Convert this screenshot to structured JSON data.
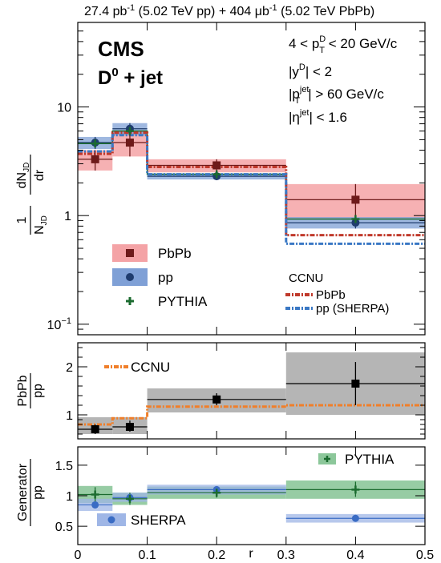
{
  "header": {
    "lumi_a": "27.4 pb",
    "lumi_a_exp": "-1",
    "lumi_a_tail": " (5.02 TeV pp) + 404 ",
    "lumi_b": "μb",
    "lumi_b_exp": "-1",
    "lumi_b_tail": " (5.02 TeV PbPb)"
  },
  "labels": {
    "cms": "CMS",
    "process_main": "D",
    "process_sup": "0",
    "process_tail": " + jet",
    "cut1": "4 < p",
    "cut1_sup": "D",
    "cut1_sub": "T",
    "cut1_tail": " < 20 GeV/c",
    "cut2_pre": "|y",
    "cut2_sup": "D",
    "cut2_tail": "| < 2",
    "cut3_pre": "|p",
    "cut3_sup": "jet",
    "cut3_sub": "T",
    "cut3_tail": "| > 60 GeV/c",
    "cut4_pre": "|η",
    "cut4_sup": "jet",
    "cut4_tail": "| < 1.6",
    "ylab_top_num": "1",
    "ylab_top_den": "N",
    "ylab_top_den_sub": "JD",
    "ylab_top_frac_num": "dN",
    "ylab_top_frac_num_sub": "JD",
    "ylab_top_frac_den": "dr",
    "ylab_mid_num": "PbPb",
    "ylab_mid_den": "pp",
    "ylab_bot_num": "Generator",
    "ylab_bot_den": "pp",
    "xlabel": "r"
  },
  "legend_top": {
    "pbpb": "PbPb",
    "pp": "pp",
    "pythia": "PYTHIA",
    "ccnu_title": "CCNU",
    "ccnu_pbpb": "PbPb",
    "ccnu_pp": "pp (SHERPA)"
  },
  "legend_mid": {
    "ccnu": "CCNU"
  },
  "legend_bot": {
    "pythia": "PYTHIA",
    "sherpa": "SHERPA"
  },
  "colors": {
    "pbpb_marker": "#6e1a1a",
    "pbpb_band": "#f4a3a6",
    "pp_marker": "#1f3c6e",
    "pp_band": "#7fa0d6",
    "pythia": "#1b6b2f",
    "pythia_band": "#8cc79a",
    "ccnu_pbpb": "#c0392b",
    "ccnu_pp": "#3a78c4",
    "ratio_band": "#b5b5b5",
    "ccnu_ratio": "#f07f2a",
    "sherpa_marker": "#3a6cc4",
    "sherpa_band": "#9fb6e6"
  },
  "chart_data": [
    {
      "type": "scatter",
      "panel": "top",
      "yscale": "log",
      "xlim": [
        0,
        0.5
      ],
      "ylim": [
        0.08,
        60
      ],
      "y_ticks": [
        "10^{-1}",
        "1",
        "10"
      ],
      "x_bins": [
        [
          0,
          0.05
        ],
        [
          0.05,
          0.1
        ],
        [
          0.1,
          0.3
        ],
        [
          0.3,
          0.5
        ]
      ],
      "x": [
        0.025,
        0.075,
        0.2,
        0.4
      ],
      "series": [
        {
          "name": "PbPb",
          "values": [
            3.3,
            4.7,
            2.9,
            1.4
          ],
          "err_low": [
            2.6,
            3.5,
            2.5,
            0.95
          ],
          "err_high": [
            4.0,
            6.0,
            3.3,
            1.95
          ]
        },
        {
          "name": "pp",
          "values": [
            4.7,
            6.3,
            2.3,
            0.86
          ],
          "err_low": [
            4.1,
            5.5,
            2.15,
            0.76
          ],
          "err_high": [
            5.3,
            7.1,
            2.45,
            0.97
          ]
        },
        {
          "name": "PYTHIA",
          "values": [
            4.6,
            6.0,
            2.4,
            0.93
          ]
        },
        {
          "name": "PbPb",
          "group": "CCNU",
          "values": [
            3.7,
            5.8,
            2.8,
            0.66
          ]
        },
        {
          "name": "pp (SHERPA)",
          "group": "CCNU",
          "values": [
            3.9,
            5.5,
            2.4,
            0.55
          ]
        }
      ]
    },
    {
      "type": "scatter",
      "panel": "ratio_pbpb_pp",
      "ylim": [
        0.5,
        2.5
      ],
      "y_ticks": [
        1,
        2
      ],
      "x": [
        0.025,
        0.075,
        0.2,
        0.4
      ],
      "series": [
        {
          "name": "PbPb/pp",
          "values": [
            0.7,
            0.75,
            1.32,
            1.65
          ],
          "err_low": [
            0.6,
            0.65,
            1.2,
            1.2
          ],
          "err_high": [
            0.8,
            0.88,
            1.45,
            2.1
          ],
          "band_low": [
            0.6,
            0.6,
            1.05,
            1.0
          ],
          "band_high": [
            0.95,
            0.95,
            1.55,
            2.3
          ]
        },
        {
          "name": "CCNU",
          "values": [
            0.8,
            0.93,
            1.17,
            1.2
          ]
        }
      ]
    },
    {
      "type": "scatter",
      "panel": "ratio_generator_pp",
      "ylim": [
        0.2,
        1.8
      ],
      "y_ticks": [
        0.5,
        1,
        1.5
      ],
      "x": [
        0.025,
        0.075,
        0.2,
        0.4
      ],
      "series": [
        {
          "name": "PYTHIA",
          "values": [
            1.02,
            0.95,
            1.05,
            1.1
          ],
          "err_low": [
            0.9,
            0.85,
            0.97,
            0.98
          ],
          "err_high": [
            1.14,
            1.05,
            1.13,
            1.23
          ],
          "band_low": [
            0.88,
            0.85,
            0.95,
            0.95
          ],
          "band_high": [
            1.16,
            1.05,
            1.15,
            1.25
          ]
        },
        {
          "name": "SHERPA",
          "values": [
            0.85,
            0.97,
            1.1,
            0.63
          ],
          "band_low": [
            0.75,
            0.9,
            1.02,
            0.56
          ],
          "band_high": [
            0.95,
            1.05,
            1.18,
            0.7
          ]
        }
      ],
      "xlabel": "r",
      "x_ticks": [
        0,
        0.1,
        0.2,
        0.3,
        0.4,
        0.5
      ]
    }
  ]
}
